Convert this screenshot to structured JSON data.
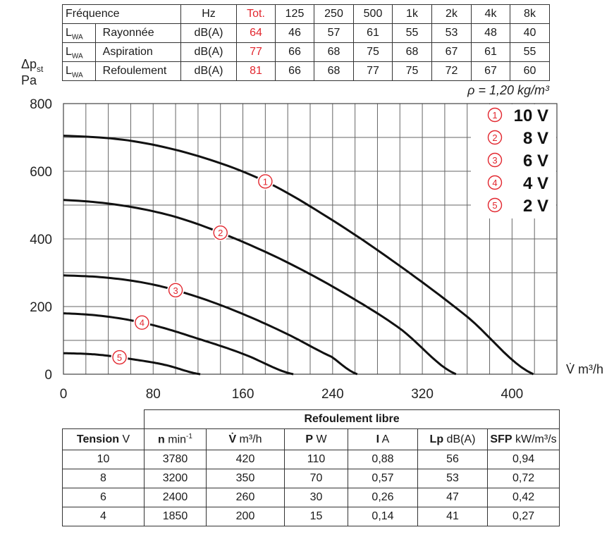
{
  "sound_table": {
    "header": [
      "Fréquence",
      "Hz",
      "Tot.",
      "125",
      "250",
      "500",
      "1k",
      "2k",
      "4k",
      "8k"
    ],
    "rows": [
      {
        "symbol": "L",
        "sub": "WA",
        "name": "Rayonnée",
        "unit": "dB(A)",
        "tot": "64",
        "values": [
          "46",
          "57",
          "61",
          "55",
          "53",
          "48",
          "40"
        ]
      },
      {
        "symbol": "L",
        "sub": "WA",
        "name": "Aspiration",
        "unit": "dB(A)",
        "tot": "77",
        "values": [
          "66",
          "68",
          "75",
          "68",
          "67",
          "61",
          "55"
        ]
      },
      {
        "symbol": "L",
        "sub": "WA",
        "name": "Refoulement",
        "unit": "dB(A)",
        "tot": "81",
        "values": [
          "66",
          "68",
          "77",
          "75",
          "72",
          "67",
          "60"
        ]
      }
    ]
  },
  "chart_data": {
    "type": "line",
    "ylabel_symbol": "Δp",
    "ylabel_sub": "st",
    "ylabel_unit": "Pa",
    "xlabel": "V̇ m³/h",
    "density_note": "ρ = 1,20 kg/m³",
    "xlim": [
      0,
      440
    ],
    "ylim": [
      0,
      800
    ],
    "x_ticks": [
      "0",
      "80",
      "160",
      "240",
      "320",
      "400"
    ],
    "x_tick_values": [
      0,
      80,
      160,
      240,
      320,
      400
    ],
    "y_ticks": [
      "0",
      "200",
      "400",
      "600",
      "800"
    ],
    "y_tick_values": [
      0,
      200,
      400,
      600,
      800
    ],
    "grid": true,
    "legend_position": "top-right",
    "series": [
      {
        "name": "10 V",
        "marker": "①",
        "label_x": 180,
        "x_max": 419,
        "points": [
          [
            0,
            705
          ],
          [
            60,
            690
          ],
          [
            120,
            645
          ],
          [
            180,
            570
          ],
          [
            240,
            455
          ],
          [
            300,
            320
          ],
          [
            360,
            170
          ],
          [
            419,
            0
          ]
        ]
      },
      {
        "name": "8 V",
        "marker": "②",
        "label_x": 140,
        "x_max": 350,
        "points": [
          [
            0,
            515
          ],
          [
            50,
            500
          ],
          [
            100,
            465
          ],
          [
            150,
            405
          ],
          [
            200,
            330
          ],
          [
            250,
            240
          ],
          [
            300,
            135
          ],
          [
            350,
            0
          ]
        ]
      },
      {
        "name": "6 V",
        "marker": "③",
        "label_x": 100,
        "x_max": 262,
        "points": [
          [
            0,
            292
          ],
          [
            40,
            285
          ],
          [
            80,
            265
          ],
          [
            120,
            228
          ],
          [
            160,
            178
          ],
          [
            200,
            118
          ],
          [
            240,
            50
          ],
          [
            262,
            0
          ]
        ]
      },
      {
        "name": "4 V",
        "marker": "④",
        "label_x": 70,
        "x_max": 205,
        "points": [
          [
            0,
            180
          ],
          [
            40,
            170
          ],
          [
            80,
            145
          ],
          [
            120,
            105
          ],
          [
            160,
            60
          ],
          [
            205,
            0
          ]
        ]
      },
      {
        "name": "2 V",
        "marker": "⑤",
        "label_x": 50,
        "x_max": 122,
        "points": [
          [
            0,
            62
          ],
          [
            30,
            58
          ],
          [
            60,
            45
          ],
          [
            90,
            28
          ],
          [
            122,
            0
          ]
        ]
      }
    ]
  },
  "perf_table": {
    "group_title": "Refoulement libre",
    "headers": [
      {
        "bold": "Tension",
        "unit": " V",
        "sup": ""
      },
      {
        "bold": "n",
        "unit": " min",
        "sup": "-1"
      },
      {
        "bold": "V̇",
        "unit": " m³/h",
        "sup": ""
      },
      {
        "bold": "P",
        "unit": " W",
        "sup": ""
      },
      {
        "bold": "I",
        "unit": " A",
        "sup": ""
      },
      {
        "bold": "Lp",
        "unit": " dB(A)",
        "sup": ""
      },
      {
        "bold": "SFP",
        "unit": " kW/m³/s",
        "sup": ""
      }
    ],
    "rows": [
      [
        "10",
        "3780",
        "420",
        "110",
        "0,88",
        "56",
        "0,94"
      ],
      [
        "8",
        "3200",
        "350",
        "70",
        "0,57",
        "53",
        "0,72"
      ],
      [
        "6",
        "2400",
        "260",
        "30",
        "0,26",
        "47",
        "0,42"
      ],
      [
        "4",
        "1850",
        "200",
        "15",
        "0,14",
        "41",
        "0,27"
      ]
    ]
  }
}
